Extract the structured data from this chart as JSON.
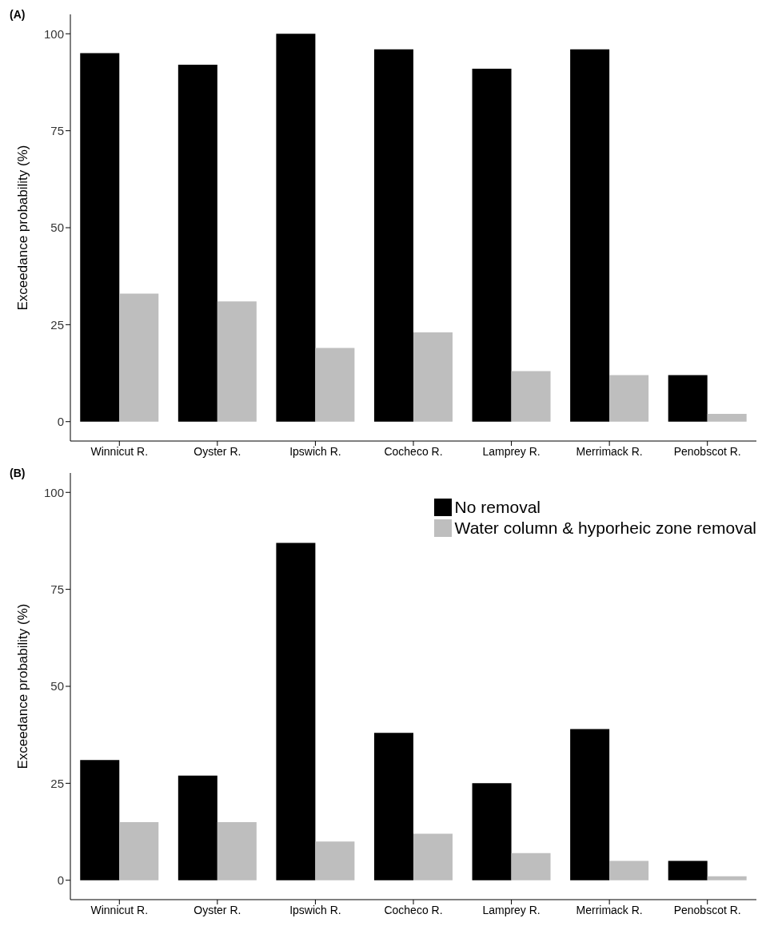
{
  "chart_data": [
    {
      "type": "bar",
      "title": "(A)",
      "ylabel": "Exceedance probability (%)",
      "categories": [
        "Winnicut R.",
        "Oyster R.",
        "Ipswich R.",
        "Cocheco R.",
        "Lamprey R.",
        "Merrimack R.",
        "Penobscot R."
      ],
      "series": [
        {
          "color": "#000000",
          "values": [
            95,
            92,
            100,
            96,
            91,
            96,
            12
          ]
        },
        {
          "color": "#bebebe",
          "values": [
            33,
            31,
            19,
            23,
            13,
            12,
            2
          ]
        }
      ],
      "ylim": [
        -5,
        105
      ],
      "yticks": [
        0,
        25,
        50,
        75,
        100
      ],
      "grid": false,
      "legend": false
    },
    {
      "type": "bar",
      "title": "(B)",
      "ylabel": "Exceedance probability (%)",
      "categories": [
        "Winnicut R.",
        "Oyster R.",
        "Ipswich R.",
        "Cocheco R.",
        "Lamprey R.",
        "Merrimack R.",
        "Penobscot R."
      ],
      "series": [
        {
          "name": "No removal",
          "color": "#000000",
          "values": [
            31,
            27,
            87,
            38,
            25,
            39,
            5
          ]
        },
        {
          "name": "Water column & hyporheic zone removal",
          "color": "#bebebe",
          "values": [
            15,
            15,
            10,
            12,
            7,
            5,
            1
          ]
        }
      ],
      "ylim": [
        -5,
        105
      ],
      "yticks": [
        0,
        25,
        50,
        75,
        100
      ],
      "grid": false,
      "legend": "top right"
    }
  ]
}
